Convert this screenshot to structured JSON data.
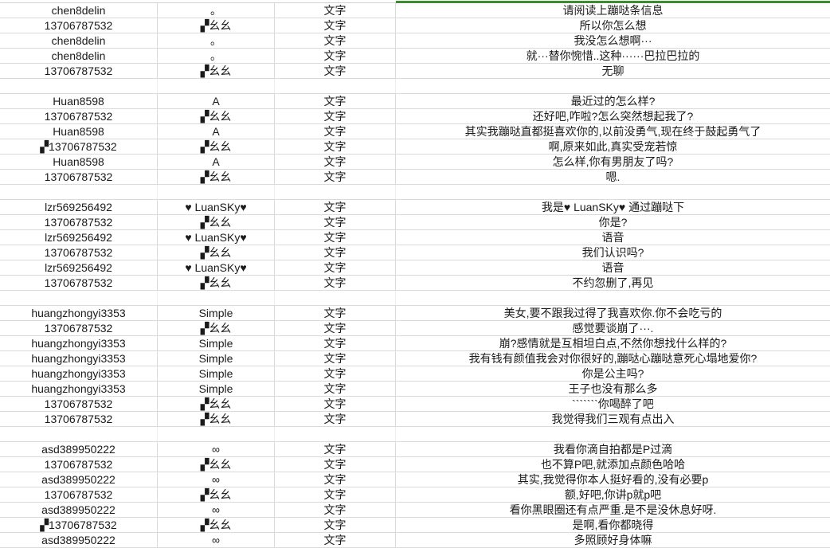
{
  "accent_color": "#3c8d2f",
  "rows": [
    [
      "chen8delin",
      "。",
      "文字",
      "请阅读上蹦哒条信息"
    ],
    [
      "13706787532",
      "▞幺幺",
      "文字",
      "所以你怎么想"
    ],
    [
      "chen8delin",
      "。",
      "文字",
      "我没怎么想啊···"
    ],
    [
      "chen8delin",
      "。",
      "文字",
      "就···替你惋惜..这种······巴拉巴拉的"
    ],
    [
      "13706787532",
      "▞幺幺",
      "文字",
      "无聊"
    ],
    [
      "",
      "",
      "",
      ""
    ],
    [
      "Huan8598",
      "A",
      "文字",
      "最近过的怎么样?"
    ],
    [
      "13706787532",
      "▞幺幺",
      "文字",
      "还好吧,咋啦?怎么突然想起我了?"
    ],
    [
      "Huan8598",
      "A",
      "文字",
      "其实我蹦哒直都挺喜欢你的,以前没勇气,现在终于鼓起勇气了"
    ],
    [
      "▞13706787532",
      "▞幺幺",
      "文字",
      "啊,原来如此,真实受宠若惊"
    ],
    [
      "Huan8598",
      "A",
      "文字",
      "怎么样,你有男朋友了吗?"
    ],
    [
      "13706787532",
      "▞幺幺",
      "文字",
      "嗯."
    ],
    [
      "",
      "",
      "",
      ""
    ],
    [
      "lzr569256492",
      "♥ LuanSKy♥",
      "文字",
      "我是♥ LuanSKy♥ 通过蹦哒下"
    ],
    [
      "13706787532",
      "▞幺幺",
      "文字",
      "你是?"
    ],
    [
      "lzr569256492",
      "♥ LuanSKy♥",
      "文字",
      "语音"
    ],
    [
      "13706787532",
      "▞幺幺",
      "文字",
      "我们认识吗?"
    ],
    [
      "lzr569256492",
      "♥ LuanSKy♥",
      "文字",
      "语音"
    ],
    [
      "13706787532",
      "▞幺幺",
      "文字",
      "不约忽删了,再见"
    ],
    [
      "",
      "",
      "",
      ""
    ],
    [
      "huangzhongyi3353",
      "Simple",
      "文字",
      "美女,要不跟我过得了我喜欢你.你不会吃亏的"
    ],
    [
      "13706787532",
      "▞幺幺",
      "文字",
      "感觉要谈崩了···."
    ],
    [
      "huangzhongyi3353",
      "Simple",
      "文字",
      "崩?感情就是互相坦白点,不然你想找什么样的?"
    ],
    [
      "huangzhongyi3353",
      "Simple",
      "文字",
      "我有钱有颜值我会对你很好的,蹦哒心蹦哒意死心塌地爱你?"
    ],
    [
      "huangzhongyi3353",
      "Simple",
      "文字",
      "你是公主吗?"
    ],
    [
      "huangzhongyi3353",
      "Simple",
      "文字",
      "王子也没有那么多"
    ],
    [
      "13706787532",
      "▞幺幺",
      "文字",
      "```````你喝醉了吧"
    ],
    [
      "13706787532",
      "▞幺幺",
      "文字",
      "我觉得我们三观有点出入"
    ],
    [
      "",
      "",
      "",
      ""
    ],
    [
      "asd389950222",
      "∞",
      "文字",
      "我看你滴自拍都是P过滴"
    ],
    [
      "13706787532",
      "▞幺幺",
      "文字",
      "也不算P吧,就添加点颜色哈哈"
    ],
    [
      "asd389950222",
      "∞",
      "文字",
      "其实,我觉得你本人挺好看的,没有必要p"
    ],
    [
      "13706787532",
      "▞幺幺",
      "文字",
      "额,好吧,你讲p就p吧"
    ],
    [
      "asd389950222",
      "∞",
      "文字",
      "看你黑眼圈还有点严重.是不是没休息好呀."
    ],
    [
      "▞13706787532",
      "▞幺幺",
      "文字",
      "是啊,看你都晓得"
    ],
    [
      "asd389950222",
      "∞",
      "文字",
      "多照顾好身体嘛"
    ]
  ]
}
